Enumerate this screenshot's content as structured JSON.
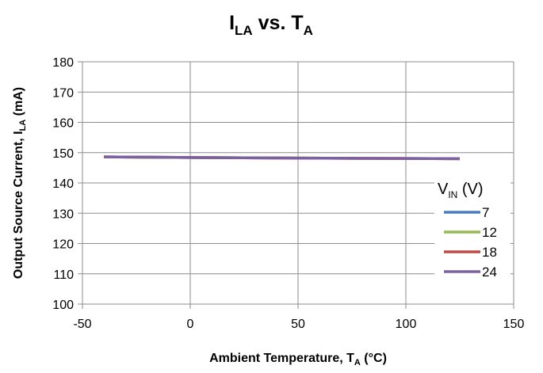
{
  "chart_data": {
    "type": "line",
    "title": {
      "main": "I",
      "sub1": "LA",
      "mid": " vs. T",
      "sub2": "A"
    },
    "xlabel": {
      "main": "Ambient Temperature, T",
      "sub": "A",
      "tail": " (°C)"
    },
    "ylabel": {
      "main": "Output Source Current, I",
      "sub": "LA",
      "tail": " (mA)"
    },
    "xlim": [
      -50,
      150
    ],
    "ylim": [
      100,
      180
    ],
    "xticks": [
      -50,
      0,
      50,
      100,
      150
    ],
    "yticks": [
      100,
      110,
      120,
      130,
      140,
      150,
      160,
      170,
      180
    ],
    "grid": true,
    "legend": {
      "placement": "right",
      "title": {
        "main": "V",
        "sub": "IN",
        "tail": " (V)"
      }
    },
    "series": [
      {
        "name": "7",
        "color": "#4a7ebb",
        "x": [
          -40,
          0,
          25,
          50,
          85,
          125
        ],
        "y": [
          148.6,
          148.4,
          148.3,
          148.2,
          148.1,
          148.0
        ]
      },
      {
        "name": "12",
        "color": "#98b954",
        "x": [
          -40,
          0,
          25,
          50,
          85,
          125
        ],
        "y": [
          148.6,
          148.4,
          148.3,
          148.2,
          148.1,
          148.0
        ]
      },
      {
        "name": "18",
        "color": "#be4b48",
        "x": [
          -40,
          0,
          25,
          50,
          85,
          125
        ],
        "y": [
          148.6,
          148.4,
          148.3,
          148.2,
          148.1,
          148.0
        ]
      },
      {
        "name": "24",
        "color": "#7d60a0",
        "x": [
          -40,
          0,
          25,
          50,
          85,
          125
        ],
        "y": [
          148.6,
          148.4,
          148.3,
          148.2,
          148.1,
          148.0
        ]
      }
    ]
  }
}
